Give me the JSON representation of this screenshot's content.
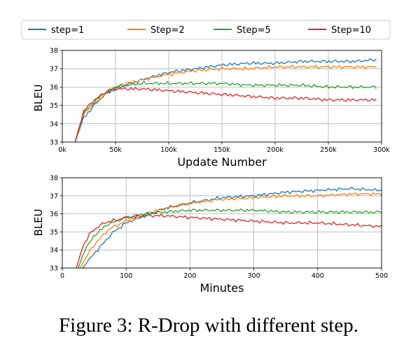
{
  "legend": {
    "placement": "top",
    "entries": [
      {
        "name": "step=1",
        "color": "#1f77b4"
      },
      {
        "name": "Step=2",
        "color": "#ff7f0e"
      },
      {
        "name": "Step=5",
        "color": "#2ca02c"
      },
      {
        "name": "Step=10",
        "color": "#d62728"
      }
    ]
  },
  "caption": "Figure 3: R-Drop with different step.",
  "chart_data": [
    {
      "type": "line",
      "xlabel": "Update Number",
      "ylabel": "BLEU",
      "xlim": [
        0,
        300000
      ],
      "ylim": [
        33,
        38
      ],
      "grid": true,
      "xticks": [
        0,
        50000,
        100000,
        150000,
        200000,
        250000,
        300000
      ],
      "xtick_labels": [
        "0k",
        "50k",
        "100k",
        "150k",
        "200k",
        "250k",
        "300k"
      ],
      "yticks": [
        33,
        34,
        35,
        36,
        37,
        38
      ],
      "ytick_labels": [
        "33",
        "34",
        "35",
        "36",
        "37",
        "38"
      ],
      "x": [
        12000,
        20000,
        30000,
        40000,
        50000,
        60000,
        75000,
        100000,
        125000,
        150000,
        175000,
        200000,
        225000,
        250000,
        275000,
        295000
      ],
      "series": [
        {
          "name": "step=1",
          "values": [
            33.0,
            34.3,
            35.0,
            35.6,
            35.9,
            36.1,
            36.4,
            36.8,
            37.0,
            37.2,
            37.3,
            37.3,
            37.4,
            37.4,
            37.4,
            37.5
          ]
        },
        {
          "name": "Step=2",
          "values": [
            33.0,
            34.5,
            35.1,
            35.6,
            36.0,
            36.2,
            36.4,
            36.7,
            36.9,
            37.0,
            37.0,
            37.1,
            37.1,
            37.1,
            37.1,
            37.1
          ]
        },
        {
          "name": "Step=5",
          "values": [
            33.0,
            34.6,
            35.2,
            35.7,
            36.0,
            36.1,
            36.2,
            36.2,
            36.2,
            36.2,
            36.1,
            36.1,
            36.1,
            36.0,
            36.0,
            36.0
          ]
        },
        {
          "name": "Step=10",
          "values": [
            33.0,
            34.7,
            35.3,
            35.7,
            35.9,
            35.9,
            35.9,
            35.8,
            35.7,
            35.6,
            35.5,
            35.4,
            35.4,
            35.3,
            35.3,
            35.3
          ]
        }
      ]
    },
    {
      "type": "line",
      "xlabel": "Minutes",
      "ylabel": "BLEU",
      "xlim": [
        0,
        500
      ],
      "ylim": [
        33,
        38
      ],
      "grid": true,
      "xticks": [
        0,
        100,
        200,
        300,
        400,
        500
      ],
      "xtick_labels": [
        "0",
        "100",
        "200",
        "300",
        "400",
        "500"
      ],
      "yticks": [
        33,
        34,
        35,
        36,
        37,
        38
      ],
      "ytick_labels": [
        "33",
        "34",
        "35",
        "36",
        "37",
        "38"
      ],
      "series": [
        {
          "name": "step=1",
          "x": [
            32,
            45,
            60,
            80,
            100,
            130,
            160,
            200,
            250,
            300,
            350,
            400,
            450,
            500
          ],
          "values": [
            33.0,
            33.6,
            34.2,
            35.0,
            35.5,
            35.9,
            36.3,
            36.6,
            36.9,
            37.0,
            37.2,
            37.3,
            37.4,
            37.3
          ]
        },
        {
          "name": "Step=2",
          "x": [
            28,
            40,
            55,
            75,
            100,
            130,
            160,
            200,
            250,
            300,
            350,
            400,
            450,
            500
          ],
          "values": [
            33.0,
            33.8,
            34.5,
            35.2,
            35.6,
            36.0,
            36.3,
            36.6,
            36.8,
            36.9,
            37.0,
            37.0,
            37.1,
            37.1
          ]
        },
        {
          "name": "Step=5",
          "x": [
            25,
            35,
            50,
            70,
            100,
            130,
            160,
            200,
            250,
            300,
            350,
            400,
            450,
            500
          ],
          "values": [
            33.0,
            34.0,
            34.8,
            35.4,
            35.8,
            36.0,
            36.1,
            36.2,
            36.2,
            36.2,
            36.1,
            36.1,
            36.1,
            36.1
          ]
        },
        {
          "name": "Step=10",
          "x": [
            22,
            32,
            45,
            65,
            100,
            130,
            160,
            200,
            250,
            300,
            350,
            400,
            450,
            500
          ],
          "values": [
            33.0,
            34.2,
            35.0,
            35.5,
            35.8,
            35.9,
            35.9,
            35.8,
            35.7,
            35.6,
            35.5,
            35.5,
            35.4,
            35.3
          ]
        }
      ]
    }
  ]
}
